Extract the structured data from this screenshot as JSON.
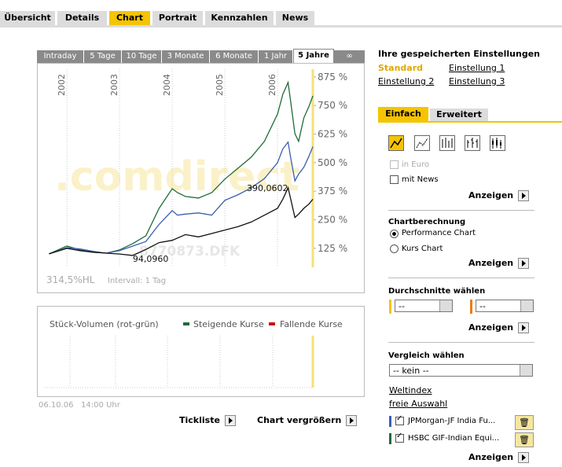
{
  "top_tabs": [
    "Übersicht",
    "Details",
    "Chart",
    "Portrait",
    "Kennzahlen",
    "News"
  ],
  "period_tabs": [
    "Intraday",
    "5 Tage",
    "10 Tage",
    "3 Monate",
    "6 Monate",
    "1 Jahr",
    "5 Jahre",
    "∞"
  ],
  "chart_data": {
    "type": "line",
    "watermark": ".comdirect",
    "watermark_id": "8770873.DFK",
    "x": [
      2001.66,
      2002,
      2002.25,
      2002.5,
      2002.75,
      2003,
      2003.25,
      2003.5,
      2003.75,
      2004,
      2004.1,
      2004.25,
      2004.5,
      2004.75,
      2005,
      2005.25,
      2005.5,
      2005.75,
      2006,
      2006.1,
      2006.2,
      2006.25,
      2006.33,
      2006.4,
      2006.5,
      2006.6,
      2006.67
    ],
    "series": [
      {
        "color": "#1f6b3a",
        "values": [
          101,
          135,
          118,
          108,
          104,
          118,
          146,
          180,
          300,
          386,
          369,
          352,
          345,
          369,
          428,
          476,
          524,
          593,
          713,
          799,
          851,
          765,
          627,
          593,
          696,
          748,
          792
        ]
      },
      {
        "color": "#3a5fb0",
        "values": [
          101,
          128,
          122,
          112,
          104,
          115,
          135,
          155,
          230,
          290,
          270,
          275,
          280,
          270,
          335,
          360,
          390,
          430,
          500,
          560,
          590,
          520,
          420,
          450,
          480,
          530,
          570
        ]
      },
      {
        "color": "#111111",
        "values": [
          101,
          125,
          115,
          108,
          104,
          100,
          94.096,
          120,
          150,
          160,
          170,
          185,
          175,
          190,
          205,
          220,
          240,
          270,
          300,
          340,
          390.0602,
          340,
          260,
          275,
          300,
          320,
          340
        ]
      }
    ],
    "annotations": [
      {
        "label": "390,0602",
        "x": 2006.2,
        "y": 390.0602
      },
      {
        "label": "94,0960",
        "x": 2003.25,
        "y": 94.096
      }
    ],
    "xlim": [
      2001.58,
      2006.7
    ],
    "xticks": [
      2002,
      2003,
      2004,
      2005,
      2006
    ],
    "ylim": [
      42,
      909
    ],
    "yticks": [
      {
        "value": 125,
        "label": "125 %"
      },
      {
        "value": 250,
        "label": "250 %"
      },
      {
        "value": 375,
        "label": "375 %"
      },
      {
        "value": 500,
        "label": "500 %"
      },
      {
        "value": 625,
        "label": "625 %"
      },
      {
        "value": 750,
        "label": "750 %"
      },
      {
        "value": 875,
        "label": "875 %"
      }
    ],
    "footer_left": "314,5%HL",
    "footer_interval": "Intervall: 1 Tag"
  },
  "volume": {
    "title": "Stück-Volumen (rot-grün)",
    "rising": "Steigende Kurse",
    "falling": "Fallende Kurse",
    "timestamp": "06.10.06   14:00 Uhr"
  },
  "buttons": {
    "tickliste": "Tickliste",
    "enlarge": "Chart vergrößern"
  },
  "sidebar": {
    "saved_title": "Ihre gespeicherten Einstellungen",
    "standard": "Standard",
    "setting1": "Einstellung 1",
    "setting2": "Einstellung 2",
    "setting3": "Einstellung 3",
    "tab_simple": "Einfach",
    "tab_advanced": "Erweitert",
    "in_euro": "in Euro",
    "with_news": "mit News",
    "show": "Anzeigen",
    "calc_title": "Chartberechnung",
    "perf": "Performance Chart",
    "kurs": "Kurs Chart",
    "avg_title": "Durchschnitte wählen",
    "avg_option": "--",
    "compare_title": "Vergleich wählen",
    "compare_option": "-- kein --",
    "weltindex": "Weltindex",
    "free": "freie Auswahl",
    "compare1": "JPMorgan-JF India Fu...",
    "compare2": "HSBC GIF-Indian Equi..."
  }
}
